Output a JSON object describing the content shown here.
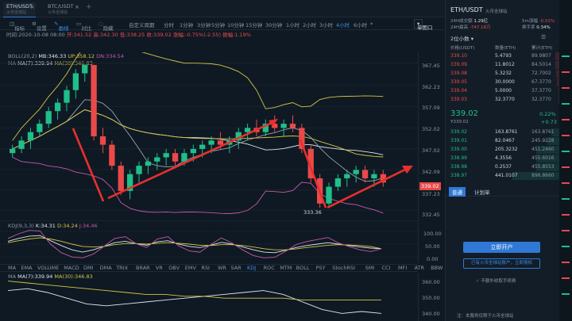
{
  "tabs": [
    {
      "pair": "ETH/USDT",
      "sub": "火币全球站"
    },
    {
      "pair": "BTC/USDT",
      "sub": "火币全球站"
    }
  ],
  "toolbar": {
    "row1": [
      "指标",
      "设置",
      "画线",
      "对比",
      "隐藏",
      "自定义周期",
      "分时",
      "1分钟",
      "3分钟",
      "5分钟",
      "10分钟",
      "15分钟",
      "30分钟",
      "1小时",
      "2小时",
      "3小时",
      "4小时",
      "6小时"
    ],
    "active_period": "4小时",
    "active_tool": "画线",
    "layout": "单图口"
  },
  "ohlc": {
    "time": "时间:2020-10-08 08:00",
    "open": "开:341.52",
    "high": "高:342.30",
    "low": "低:338.25",
    "close": "收:339.02",
    "change": "涨幅:-0.75%(-2.55)",
    "amplitude": "振幅:1.19%"
  },
  "legend": {
    "boll": "BOLL(20,2)",
    "boll_mid": "MB:346.33",
    "boll_up": "UP:358.12",
    "boll_dn": "DN:334.54",
    "ma_label": "MA",
    "ma7": "MA(7):339.94",
    "ma30": "MA(30):346.83"
  },
  "price_axis": [
    "367.45",
    "362.23",
    "357.09",
    "352.02",
    "347.02",
    "342.09",
    "337.23",
    "332.45"
  ],
  "current_price_tag": "339.02",
  "low_marker": "333.36",
  "kdj": {
    "label": "KDJ(9,3,3)",
    "k": "K:34.31",
    "d": "D:34.24",
    "j": "J:34.46",
    "axis": [
      "100.00",
      "50.00",
      "0.00"
    ]
  },
  "indicator_tabs": [
    "MA",
    "EMA",
    "VOLUME",
    "MACD",
    "DMI",
    "DMA",
    "TRIX",
    "BRAR",
    "VR",
    "OBV",
    "EMV",
    "RSI",
    "WR",
    "SAR",
    "KDJ",
    "ROC",
    "MTM",
    "BOLL",
    "PSY",
    "StochRSI",
    "SMI",
    "CCI",
    "MFI",
    "ATR",
    "BBW",
    "SKDJ"
  ],
  "active_indicator": "KDJ",
  "bottom_ma": {
    "label": "MA",
    "ma7": "MA(7):339.94",
    "ma30": "MA(30):346.83",
    "axis": [
      "360.00",
      "350.00",
      "340.00"
    ]
  },
  "side": {
    "pair": "ETH/USDT",
    "exchange": "火币全球站",
    "stats": [
      {
        "k": "24H成交额",
        "v": "1.29亿"
      },
      {
        "k": "24H最高",
        "v": "-747.18万"
      },
      {
        "k": "5m涨幅",
        "v": "-0.01%"
      },
      {
        "k": "换手率",
        "v": "0.34%"
      }
    ],
    "depth": "2位小数",
    "cols": [
      "价格(USDT)",
      "数量(ETH)",
      "累计(ETH)"
    ],
    "asks": [
      [
        "339.10",
        "5.4793",
        "89.9807"
      ],
      [
        "339.09",
        "11.8012",
        "84.5014"
      ],
      [
        "339.08",
        "5.3232",
        "72.7002"
      ],
      [
        "339.05",
        "30.0000",
        "67.3770"
      ],
      [
        "339.04",
        "5.0000",
        "37.3770"
      ],
      [
        "339.03",
        "32.3770",
        "32.3770"
      ]
    ],
    "last_price": "339.02",
    "last_cny": "¥339.02",
    "pct": "0.22%",
    "chg": "+0.73",
    "bids": [
      [
        "339.02",
        "163.8761",
        "163.8761"
      ],
      [
        "339.01",
        "82.0467",
        "245.9228"
      ],
      [
        "339.00",
        "205.3232",
        "451.2460"
      ],
      [
        "338.99",
        "4.3556",
        "455.6016"
      ],
      [
        "338.98",
        "0.2537",
        "455.8553"
      ],
      [
        "338.97",
        "441.0107",
        "896.8660"
      ]
    ],
    "trade_tabs": [
      "普通",
      "计划单"
    ],
    "open_account": "立即开户",
    "bind": "已有火币全球站账户，立即授权",
    "fee_note": "不额外收取手续费",
    "footer": "注：本服务仅限于火币全球站"
  },
  "colors": {
    "up": "#1fbf8a",
    "down": "#e84a4a",
    "accent": "#3d8fe8"
  },
  "chart_data": [
    {
      "type": "candlestick",
      "title": "ETH/USDT 4小时",
      "ylim": [
        330,
        370
      ],
      "series": [
        {
          "name": "MA(7)"
        },
        {
          "name": "MA(30)"
        },
        {
          "name": "BOLL(20,2)"
        }
      ],
      "candles": [
        [
          346,
          348,
          345,
          347
        ],
        [
          347,
          350,
          346,
          349
        ],
        [
          349,
          352,
          347,
          351
        ],
        [
          351,
          354,
          350,
          353
        ],
        [
          353,
          357,
          352,
          356
        ],
        [
          356,
          359,
          354,
          358
        ],
        [
          358,
          362,
          356,
          361
        ],
        [
          361,
          366,
          359,
          365
        ],
        [
          365,
          367,
          363,
          367
        ],
        [
          367,
          367,
          349,
          350
        ],
        [
          350,
          352,
          346,
          348
        ],
        [
          348,
          349,
          342,
          343
        ],
        [
          343,
          344,
          336,
          337
        ],
        [
          337,
          342,
          335,
          341
        ],
        [
          341,
          344,
          339,
          343
        ],
        [
          343,
          345,
          341,
          344
        ],
        [
          344,
          346,
          342,
          345
        ],
        [
          345,
          347,
          343,
          346
        ],
        [
          346,
          347,
          343,
          344
        ],
        [
          344,
          347,
          343,
          346
        ],
        [
          346,
          348,
          344,
          347
        ],
        [
          347,
          349,
          345,
          348
        ],
        [
          348,
          350,
          346,
          349
        ],
        [
          349,
          351,
          347,
          348
        ],
        [
          348,
          350,
          346,
          349
        ],
        [
          349,
          352,
          347,
          351
        ],
        [
          351,
          353,
          349,
          352
        ],
        [
          352,
          354,
          350,
          351
        ],
        [
          351,
          354,
          350,
          353
        ],
        [
          353,
          355,
          351,
          352
        ],
        [
          352,
          354,
          350,
          353
        ],
        [
          353,
          355,
          351,
          352
        ],
        [
          352,
          353,
          346,
          347
        ],
        [
          347,
          348,
          339,
          340
        ],
        [
          340,
          341,
          333,
          334
        ],
        [
          334,
          339,
          333,
          338
        ],
        [
          338,
          341,
          337,
          340
        ],
        [
          340,
          342,
          338,
          341
        ],
        [
          341,
          343,
          339,
          342
        ],
        [
          342,
          343,
          339,
          340
        ],
        [
          340,
          342,
          338,
          341
        ],
        [
          341,
          342,
          338,
          339
        ]
      ]
    },
    {
      "type": "line",
      "title": "KDJ(9,3,3)",
      "ylim": [
        0,
        100
      ],
      "series": [
        {
          "name": "K",
          "values": [
            60,
            70,
            78,
            80,
            62,
            45,
            30,
            22,
            30,
            42,
            55,
            60,
            52,
            46,
            58,
            62,
            50,
            42,
            38,
            46,
            56,
            50,
            40,
            30,
            22,
            20,
            28,
            38,
            45,
            50,
            55,
            50,
            45,
            40,
            36,
            34
          ]
        },
        {
          "name": "D",
          "values": [
            55,
            62,
            68,
            72,
            68,
            60,
            50,
            42,
            40,
            42,
            48,
            52,
            52,
            50,
            53,
            55,
            53,
            50,
            46,
            45,
            48,
            48,
            45,
            40,
            34,
            30,
            30,
            33,
            38,
            42,
            46,
            48,
            47,
            45,
            42,
            34
          ]
        },
        {
          "name": "J",
          "values": [
            70,
            86,
            98,
            96,
            50,
            20,
            5,
            2,
            15,
            42,
            70,
            76,
            52,
            38,
            68,
            76,
            44,
            26,
            22,
            48,
            72,
            54,
            30,
            10,
            2,
            4,
            24,
            48,
            59,
            66,
            73,
            54,
            41,
            30,
            24,
            34
          ]
        }
      ]
    },
    {
      "type": "line",
      "title": "MA",
      "series": [
        {
          "name": "MA(7)",
          "values": [
            352,
            353,
            351,
            348,
            345,
            344,
            345,
            346,
            347,
            348,
            349,
            350,
            351,
            352,
            350,
            346,
            342,
            340,
            341,
            340
          ]
        },
        {
          "name": "MA(30)",
          "values": [
            357,
            356,
            355,
            354,
            353,
            352,
            351,
            350,
            350,
            349,
            349,
            348,
            348,
            348,
            348,
            347,
            347,
            347,
            347,
            347
          ]
        }
      ]
    }
  ]
}
